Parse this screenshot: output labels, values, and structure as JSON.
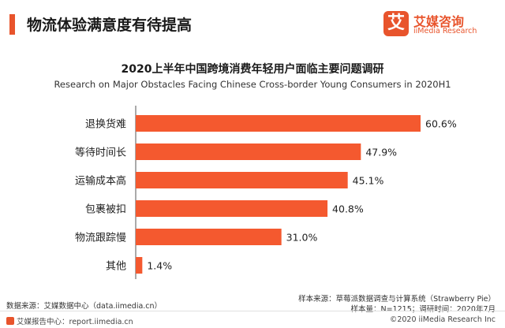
{
  "header": {
    "title": "物流体验满意度有待提高"
  },
  "logo": {
    "glyph": "艾",
    "name_cn": "艾媒咨询",
    "name_en": "iiMedia Research"
  },
  "chart_data": {
    "type": "bar",
    "orientation": "horizontal",
    "title": "2020上半年中国跨境消费年轻用户面临主要问题调研",
    "subtitle": "Research on Major Obstacles Facing Chinese Cross-border Young Consumers in 2020H1",
    "categories": [
      "退换货难",
      "等待时间长",
      "运输成本高",
      "包裹被扣",
      "物流跟踪慢",
      "其他"
    ],
    "values": [
      60.6,
      47.9,
      45.1,
      40.8,
      31.0,
      1.4
    ],
    "value_labels": [
      "60.6%",
      "47.9%",
      "45.1%",
      "40.8%",
      "31.0%",
      "1.4%"
    ],
    "xlim": [
      0,
      60.6
    ],
    "bar_color": "#f4592f",
    "grid": false,
    "legend": "none"
  },
  "source": {
    "left": "数据来源：艾媒数据中心（data.iimedia.cn）",
    "right_line1": "样本来源：草莓派数据调查与计算系统（Strawberry Pie）",
    "right_line2": "样本量：N=1215；调研时间：2020年7月"
  },
  "footer": {
    "left": "艾媒报告中心：report.iimedia.cn",
    "right": "©2020  iiMedia Research  Inc"
  },
  "colors": {
    "accent": "#e8542c",
    "bar": "#f4592f"
  }
}
